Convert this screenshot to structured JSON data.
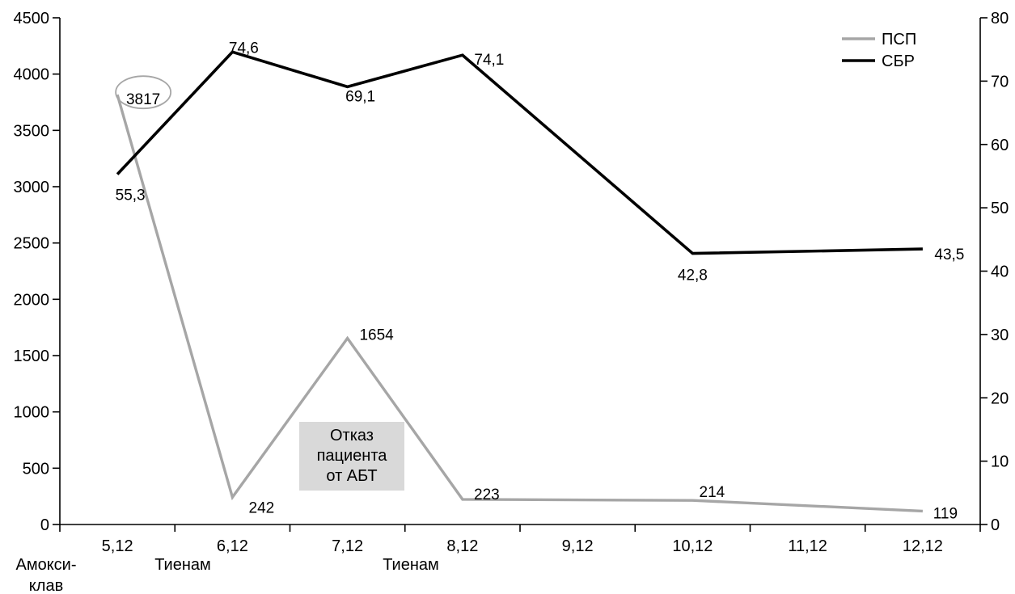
{
  "chart_data": {
    "type": "line",
    "categories": [
      "5,12",
      "6,12",
      "7,12",
      "8,12",
      "9,12",
      "10,12",
      "11,12",
      "12,12"
    ],
    "ylim_left": [
      0,
      4500
    ],
    "yticks_left": [
      0,
      500,
      1000,
      1500,
      2000,
      2500,
      3000,
      3500,
      4000,
      4500
    ],
    "ylim_right": [
      0,
      80
    ],
    "yticks_right": [
      0,
      10,
      20,
      30,
      40,
      50,
      60,
      70,
      80
    ],
    "series": [
      {
        "name": "ПСП",
        "axis": "left",
        "color": "#a6a6a6",
        "values": [
          3817,
          242,
          1654,
          223,
          null,
          214,
          null,
          119
        ],
        "labels": [
          "3817",
          "242",
          "1654",
          "223",
          "",
          "214",
          "",
          "119"
        ]
      },
      {
        "name": "СБР",
        "axis": "right",
        "color": "#000000",
        "values": [
          55.3,
          74.6,
          69.1,
          74.1,
          null,
          42.8,
          null,
          43.5
        ],
        "labels": [
          "55,3",
          "74,6",
          "69,1",
          "74,1",
          "",
          "42,8",
          "",
          "43,5"
        ]
      }
    ],
    "annotations": {
      "circled_value": "3817",
      "note_box": [
        "Отказ",
        "пациента",
        "от АБТ"
      ],
      "treatments": [
        {
          "category": "5,12",
          "lines": [
            "Амокси-",
            "клав"
          ]
        },
        {
          "category": "6,12",
          "lines": [
            "Тиенам"
          ]
        },
        {
          "category": "7,12",
          "lines": [
            "Тиенам"
          ]
        }
      ]
    },
    "grid": false,
    "legend_position": "top-right"
  }
}
